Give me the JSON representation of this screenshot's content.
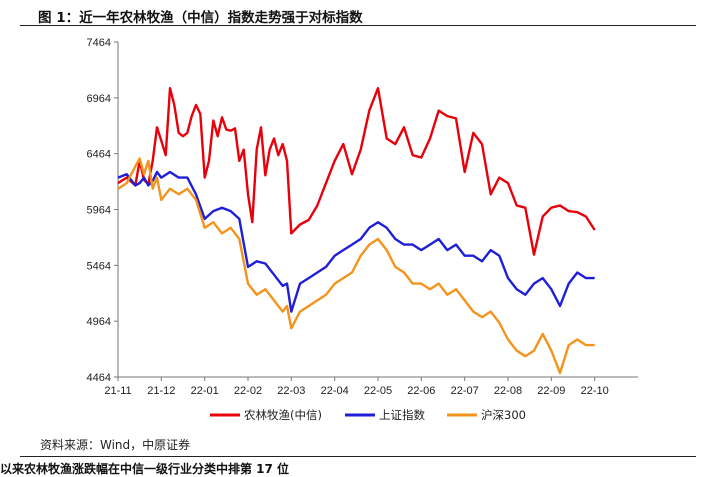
{
  "title": "图 1：近一年农林牧渔（中信）指数走势强于对标指数",
  "source": "资料来源：Wind，中原证券",
  "bottom_text": "以来农林牧渔涨跌幅在中信一级行业分类中排第 17 位",
  "colors": {
    "agri": "#e8000b",
    "sse": "#1f1fd8",
    "hs300": "#f4941c"
  },
  "chart_data": {
    "type": "line",
    "ylim": [
      4464,
      7464
    ],
    "yticks": [
      4464,
      4964,
      5464,
      5964,
      6464,
      6964,
      7464
    ],
    "xticks": [
      "21-11",
      "21-12",
      "22-01",
      "22-02",
      "22-03",
      "22-04",
      "22-05",
      "22-06",
      "22-07",
      "22-08",
      "22-09",
      "22-10"
    ],
    "legend": "bottom",
    "grid": false,
    "series": [
      {
        "name": "农林牧渔(中信)",
        "key": "agri",
        "x": [
          0,
          0.2,
          0.4,
          0.5,
          0.6,
          0.7,
          0.8,
          0.9,
          1.0,
          1.1,
          1.2,
          1.3,
          1.4,
          1.5,
          1.6,
          1.7,
          1.8,
          1.9,
          2.0,
          2.1,
          2.2,
          2.3,
          2.4,
          2.5,
          2.6,
          2.7,
          2.8,
          2.9,
          3.0,
          3.1,
          3.2,
          3.3,
          3.4,
          3.5,
          3.6,
          3.7,
          3.8,
          3.9,
          4.0,
          4.2,
          4.4,
          4.6,
          4.8,
          5.0,
          5.2,
          5.4,
          5.6,
          5.8,
          6.0,
          6.2,
          6.4,
          6.6,
          6.8,
          7.0,
          7.2,
          7.4,
          7.6,
          7.8,
          8.0,
          8.2,
          8.4,
          8.6,
          8.8,
          9.0,
          9.2,
          9.4,
          9.6,
          9.8,
          10.0,
          10.2,
          10.4,
          10.6,
          10.8,
          11.0
        ],
        "y": [
          6200,
          6250,
          6180,
          6400,
          6230,
          6190,
          6400,
          6700,
          6580,
          6450,
          7050,
          6900,
          6650,
          6620,
          6650,
          6800,
          6900,
          6820,
          6250,
          6400,
          6760,
          6620,
          6790,
          6680,
          6670,
          6690,
          6400,
          6500,
          6100,
          5850,
          6500,
          6700,
          6270,
          6500,
          6600,
          6450,
          6550,
          6400,
          5750,
          5830,
          5870,
          6000,
          6200,
          6400,
          6550,
          6280,
          6500,
          6850,
          7050,
          6600,
          6550,
          6700,
          6450,
          6430,
          6600,
          6850,
          6800,
          6780,
          6300,
          6650,
          6550,
          6100,
          6250,
          6200,
          6000,
          5980,
          5560,
          5900,
          5980,
          6000,
          5950,
          5940,
          5900,
          5780
        ]
      },
      {
        "name": "上证指数",
        "key": "sse",
        "x": [
          0,
          0.2,
          0.4,
          0.5,
          0.6,
          0.7,
          0.8,
          0.9,
          1.0,
          1.2,
          1.4,
          1.6,
          1.8,
          2.0,
          2.2,
          2.4,
          2.6,
          2.8,
          3.0,
          3.2,
          3.4,
          3.6,
          3.8,
          3.9,
          4.0,
          4.2,
          4.4,
          4.6,
          4.8,
          5.0,
          5.2,
          5.4,
          5.6,
          5.8,
          6.0,
          6.2,
          6.4,
          6.6,
          6.8,
          7.0,
          7.2,
          7.4,
          7.6,
          7.8,
          8.0,
          8.2,
          8.4,
          8.6,
          8.8,
          9.0,
          9.2,
          9.4,
          9.6,
          9.8,
          10.0,
          10.2,
          10.4,
          10.6,
          10.8,
          11.0
        ],
        "y": [
          6250,
          6280,
          6180,
          6200,
          6250,
          6180,
          6220,
          6300,
          6250,
          6300,
          6250,
          6250,
          6100,
          5880,
          5950,
          5980,
          5950,
          5880,
          5450,
          5500,
          5480,
          5380,
          5280,
          5300,
          5050,
          5300,
          5350,
          5400,
          5450,
          5550,
          5600,
          5650,
          5700,
          5800,
          5850,
          5800,
          5700,
          5650,
          5650,
          5600,
          5650,
          5700,
          5600,
          5650,
          5550,
          5550,
          5500,
          5600,
          5550,
          5350,
          5250,
          5200,
          5300,
          5350,
          5250,
          5100,
          5300,
          5400,
          5350,
          5350
        ]
      },
      {
        "name": "沪深300",
        "key": "hs300",
        "x": [
          0,
          0.2,
          0.4,
          0.5,
          0.6,
          0.7,
          0.8,
          0.9,
          1.0,
          1.2,
          1.4,
          1.6,
          1.8,
          2.0,
          2.2,
          2.4,
          2.6,
          2.8,
          3.0,
          3.2,
          3.4,
          3.6,
          3.8,
          3.9,
          4.0,
          4.2,
          4.4,
          4.6,
          4.8,
          5.0,
          5.2,
          5.4,
          5.6,
          5.8,
          6.0,
          6.2,
          6.4,
          6.6,
          6.8,
          7.0,
          7.2,
          7.4,
          7.6,
          7.8,
          8.0,
          8.2,
          8.4,
          8.6,
          8.8,
          9.0,
          9.2,
          9.4,
          9.6,
          9.8,
          10.0,
          10.2,
          10.4,
          10.6,
          10.8,
          11.0
        ],
        "y": [
          6150,
          6200,
          6350,
          6420,
          6280,
          6400,
          6150,
          6250,
          6050,
          6150,
          6100,
          6150,
          6050,
          5800,
          5850,
          5750,
          5800,
          5700,
          5300,
          5200,
          5250,
          5150,
          5050,
          5100,
          4900,
          5050,
          5100,
          5150,
          5200,
          5300,
          5350,
          5400,
          5550,
          5650,
          5700,
          5600,
          5450,
          5400,
          5300,
          5300,
          5250,
          5300,
          5200,
          5250,
          5150,
          5050,
          5000,
          5050,
          4950,
          4800,
          4700,
          4650,
          4700,
          4850,
          4700,
          4500,
          4750,
          4800,
          4750,
          4750
        ]
      }
    ]
  }
}
